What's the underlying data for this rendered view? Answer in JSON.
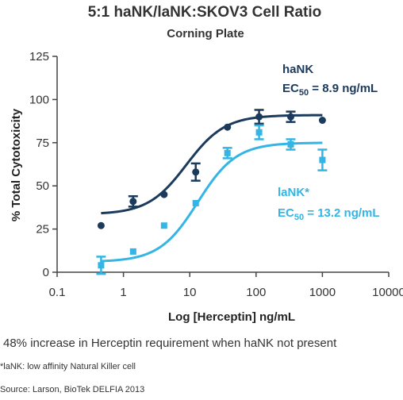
{
  "chart_data": {
    "type": "scatter",
    "title": "5:1 haNK/laNK:SKOV3 Cell Ratio",
    "subtitle": "Corning Plate",
    "xlabel": "Log [Herceptin] ng/mL",
    "ylabel": "% Total Cytotoxicity",
    "x_scale": "log",
    "xlim": [
      0.1,
      10000
    ],
    "ylim": [
      0,
      125
    ],
    "x_ticks": [
      "0.1",
      "1",
      "10",
      "100",
      "1000",
      "10000"
    ],
    "y_ticks": [
      "0",
      "25",
      "50",
      "75",
      "100",
      "125"
    ],
    "grid": false,
    "series": [
      {
        "name": "haNK",
        "ec50_label": "EC",
        "ec50_sub": "50",
        "ec50_value": " = 8.9 ng/mL",
        "color": "#1b3a5c",
        "marker": "circle",
        "points": [
          {
            "x": 0.46,
            "y": 27,
            "err": 0
          },
          {
            "x": 1.4,
            "y": 41,
            "err": 3
          },
          {
            "x": 4.1,
            "y": 45,
            "err": 0
          },
          {
            "x": 12.3,
            "y": 58,
            "err": 5
          },
          {
            "x": 37,
            "y": 84,
            "err": 0
          },
          {
            "x": 111,
            "y": 90,
            "err": 4
          },
          {
            "x": 333,
            "y": 90,
            "err": 3
          },
          {
            "x": 1000,
            "y": 88,
            "err": 0
          }
        ],
        "curve": {
          "bottom": 33.5,
          "top": 91,
          "ec50": 8.9,
          "hill": 1.5
        }
      },
      {
        "name": "laNK*",
        "ec50_label": "EC",
        "ec50_sub": "50",
        "ec50_value": " = 13.2 ng/mL",
        "color": "#33b5e5",
        "marker": "square",
        "points": [
          {
            "x": 0.46,
            "y": 4,
            "err": 5
          },
          {
            "x": 1.4,
            "y": 12,
            "err": 0
          },
          {
            "x": 4.1,
            "y": 27,
            "err": 0
          },
          {
            "x": 12.3,
            "y": 40,
            "err": 0
          },
          {
            "x": 37,
            "y": 69,
            "err": 3
          },
          {
            "x": 111,
            "y": 81,
            "err": 4
          },
          {
            "x": 333,
            "y": 74,
            "err": 3
          },
          {
            "x": 1000,
            "y": 65,
            "err": 6
          }
        ],
        "curve": {
          "bottom": 6,
          "top": 75,
          "ec50": 13.2,
          "hill": 1.5
        }
      }
    ]
  },
  "notes": {
    "main": "48% increase in Herceptin requirement when haNK not present",
    "footnote": "*laNK: low affinity Natural Killer cell",
    "source": "Source: Larson, BioTek DELFIA 2013"
  }
}
